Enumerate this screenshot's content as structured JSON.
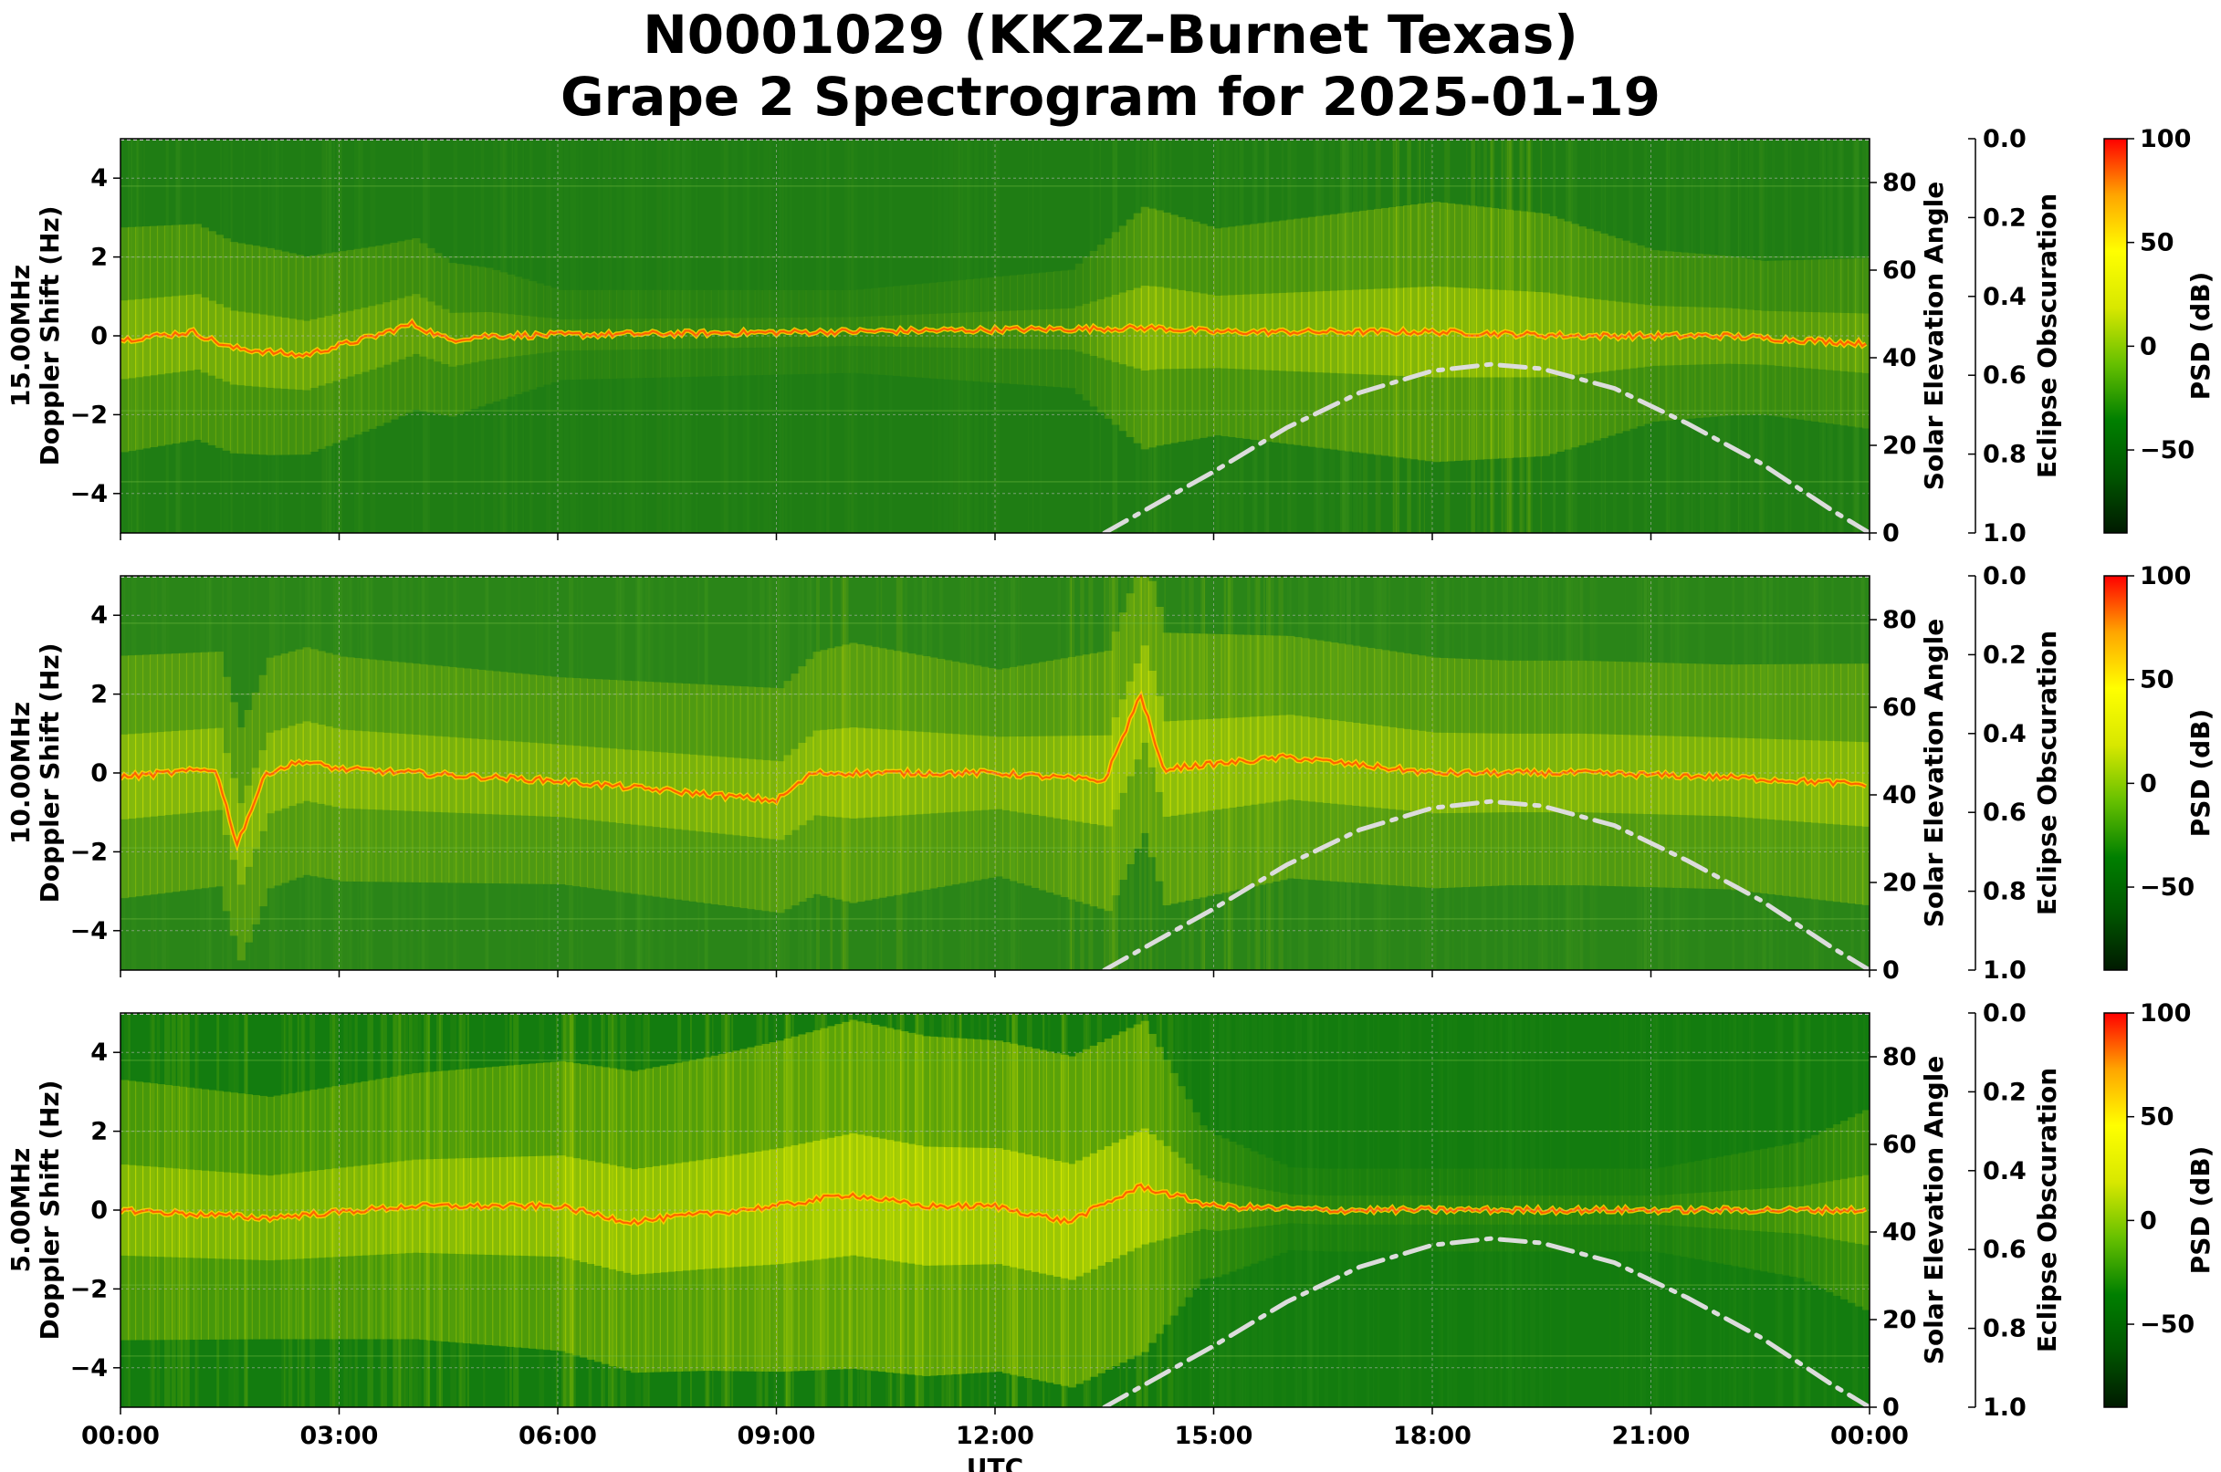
{
  "title": {
    "line1": "N0001029 (KK2Z-Burnet Texas)",
    "line2": "Grape 2 Spectrogram for 2025-01-19"
  },
  "chart_data": {
    "type": "heatmap",
    "x_axis": {
      "label": "UTC",
      "ticks": [
        "00:00",
        "03:00",
        "06:00",
        "09:00",
        "12:00",
        "15:00",
        "18:00",
        "21:00",
        "00:00"
      ],
      "range_hours": [
        0,
        24
      ]
    },
    "y_left": {
      "ticks": [
        4,
        2,
        0,
        -2,
        -4
      ],
      "range": [
        -5,
        5
      ]
    },
    "y_right_solar": {
      "label": "Solar Elevation Angle",
      "ticks": [
        80,
        60,
        40,
        20,
        0
      ],
      "range": [
        0,
        90
      ]
    },
    "y_eclipse": {
      "label": "Eclipse Obscuration",
      "ticks": [
        "0.0",
        "0.2",
        "0.4",
        "0.6",
        "0.8",
        "1.0"
      ],
      "range": [
        0,
        1
      ]
    },
    "colorbar": {
      "label": "PSD (dB)",
      "ticks": [
        100,
        50,
        0,
        -50
      ],
      "range": [
        -90,
        100
      ],
      "colors": [
        "#001a00",
        "#005500",
        "#007f00",
        "#66c000",
        "#d8e800",
        "#ffff00",
        "#ffa500",
        "#ff0000"
      ]
    },
    "grid": true,
    "panels": [
      {
        "ylabel_line1": "15.00MHz",
        "ylabel_line2": "Doppler Shift (Hz)",
        "background": "#1f7d14",
        "carrier": [
          [
            0,
            -0.1
          ],
          [
            1,
            0.1
          ],
          [
            1.5,
            -0.3
          ],
          [
            2.5,
            -0.5
          ],
          [
            3.5,
            0.0
          ],
          [
            4,
            0.3
          ],
          [
            4.5,
            -0.1
          ],
          [
            5,
            0.0
          ],
          [
            14.2,
            0.2
          ],
          [
            15,
            0.1
          ],
          [
            18,
            0.1
          ],
          [
            20,
            0.0
          ],
          [
            22,
            0.0
          ],
          [
            24,
            -0.2
          ]
        ],
        "activity": [
          [
            0,
            0.5
          ],
          [
            2,
            0.45
          ],
          [
            4,
            0.35
          ],
          [
            5,
            0.25
          ],
          [
            6,
            0.12
          ],
          [
            10,
            0.1
          ],
          [
            13,
            0.2
          ],
          [
            14,
            0.55
          ],
          [
            15,
            0.45
          ],
          [
            18,
            0.6
          ],
          [
            19.5,
            0.55
          ],
          [
            21,
            0.35
          ],
          [
            22.5,
            0.3
          ],
          [
            24,
            0.35
          ]
        ]
      },
      {
        "ylabel_line1": "10.00MHz",
        "ylabel_line2": "Doppler Shift (Hz)",
        "background": "#2a8518",
        "carrier": [
          [
            0,
            -0.1
          ],
          [
            1.3,
            0.1
          ],
          [
            1.6,
            -1.8
          ],
          [
            2,
            0.0
          ],
          [
            2.5,
            0.3
          ],
          [
            3,
            0.1
          ],
          [
            6,
            -0.2
          ],
          [
            9,
            -0.7
          ],
          [
            9.5,
            0.0
          ],
          [
            12,
            0.0
          ],
          [
            13.5,
            -0.2
          ],
          [
            14,
            2.0
          ],
          [
            14.3,
            0.1
          ],
          [
            16,
            0.4
          ],
          [
            18,
            0.0
          ],
          [
            20,
            0.0
          ],
          [
            22,
            -0.1
          ],
          [
            24,
            -0.3
          ]
        ],
        "activity": [
          [
            0,
            0.55
          ],
          [
            3,
            0.5
          ],
          [
            6,
            0.45
          ],
          [
            9,
            0.5
          ],
          [
            10,
            0.6
          ],
          [
            12,
            0.45
          ],
          [
            14,
            0.65
          ],
          [
            16,
            0.55
          ],
          [
            19,
            0.5
          ],
          [
            22,
            0.5
          ],
          [
            24,
            0.55
          ]
        ]
      },
      {
        "ylabel_line1": "5.00MHz",
        "ylabel_line2": "Doppler Shift (Hz)",
        "background": "#137c0f",
        "carrier": [
          [
            0,
            0.0
          ],
          [
            2,
            -0.2
          ],
          [
            4,
            0.1
          ],
          [
            6,
            0.1
          ],
          [
            7,
            -0.3
          ],
          [
            9,
            0.1
          ],
          [
            10,
            0.4
          ],
          [
            11,
            0.1
          ],
          [
            12,
            0.1
          ],
          [
            13,
            -0.3
          ],
          [
            14,
            0.6
          ],
          [
            15,
            0.1
          ],
          [
            16.5,
            0.0
          ],
          [
            24,
            0.0
          ]
        ],
        "activity": [
          [
            0,
            0.6
          ],
          [
            2,
            0.55
          ],
          [
            5,
            0.65
          ],
          [
            8,
            0.75
          ],
          [
            10,
            0.85
          ],
          [
            12,
            0.8
          ],
          [
            14,
            0.8
          ],
          [
            14.8,
            0.3
          ],
          [
            16,
            0.1
          ],
          [
            21,
            0.1
          ],
          [
            23,
            0.25
          ],
          [
            24,
            0.45
          ]
        ]
      }
    ],
    "solar_elevation": {
      "style": "dash-dot",
      "color": "#dcdcdc",
      "points": [
        [
          13.5,
          0
        ],
        [
          15,
          14
        ],
        [
          16,
          24
        ],
        [
          17,
          32
        ],
        [
          18,
          37
        ],
        [
          18.8,
          38.5
        ],
        [
          19.5,
          37.5
        ],
        [
          20.5,
          33
        ],
        [
          21.5,
          25
        ],
        [
          22.5,
          16
        ],
        [
          23.5,
          5
        ],
        [
          24,
          0
        ]
      ]
    }
  }
}
